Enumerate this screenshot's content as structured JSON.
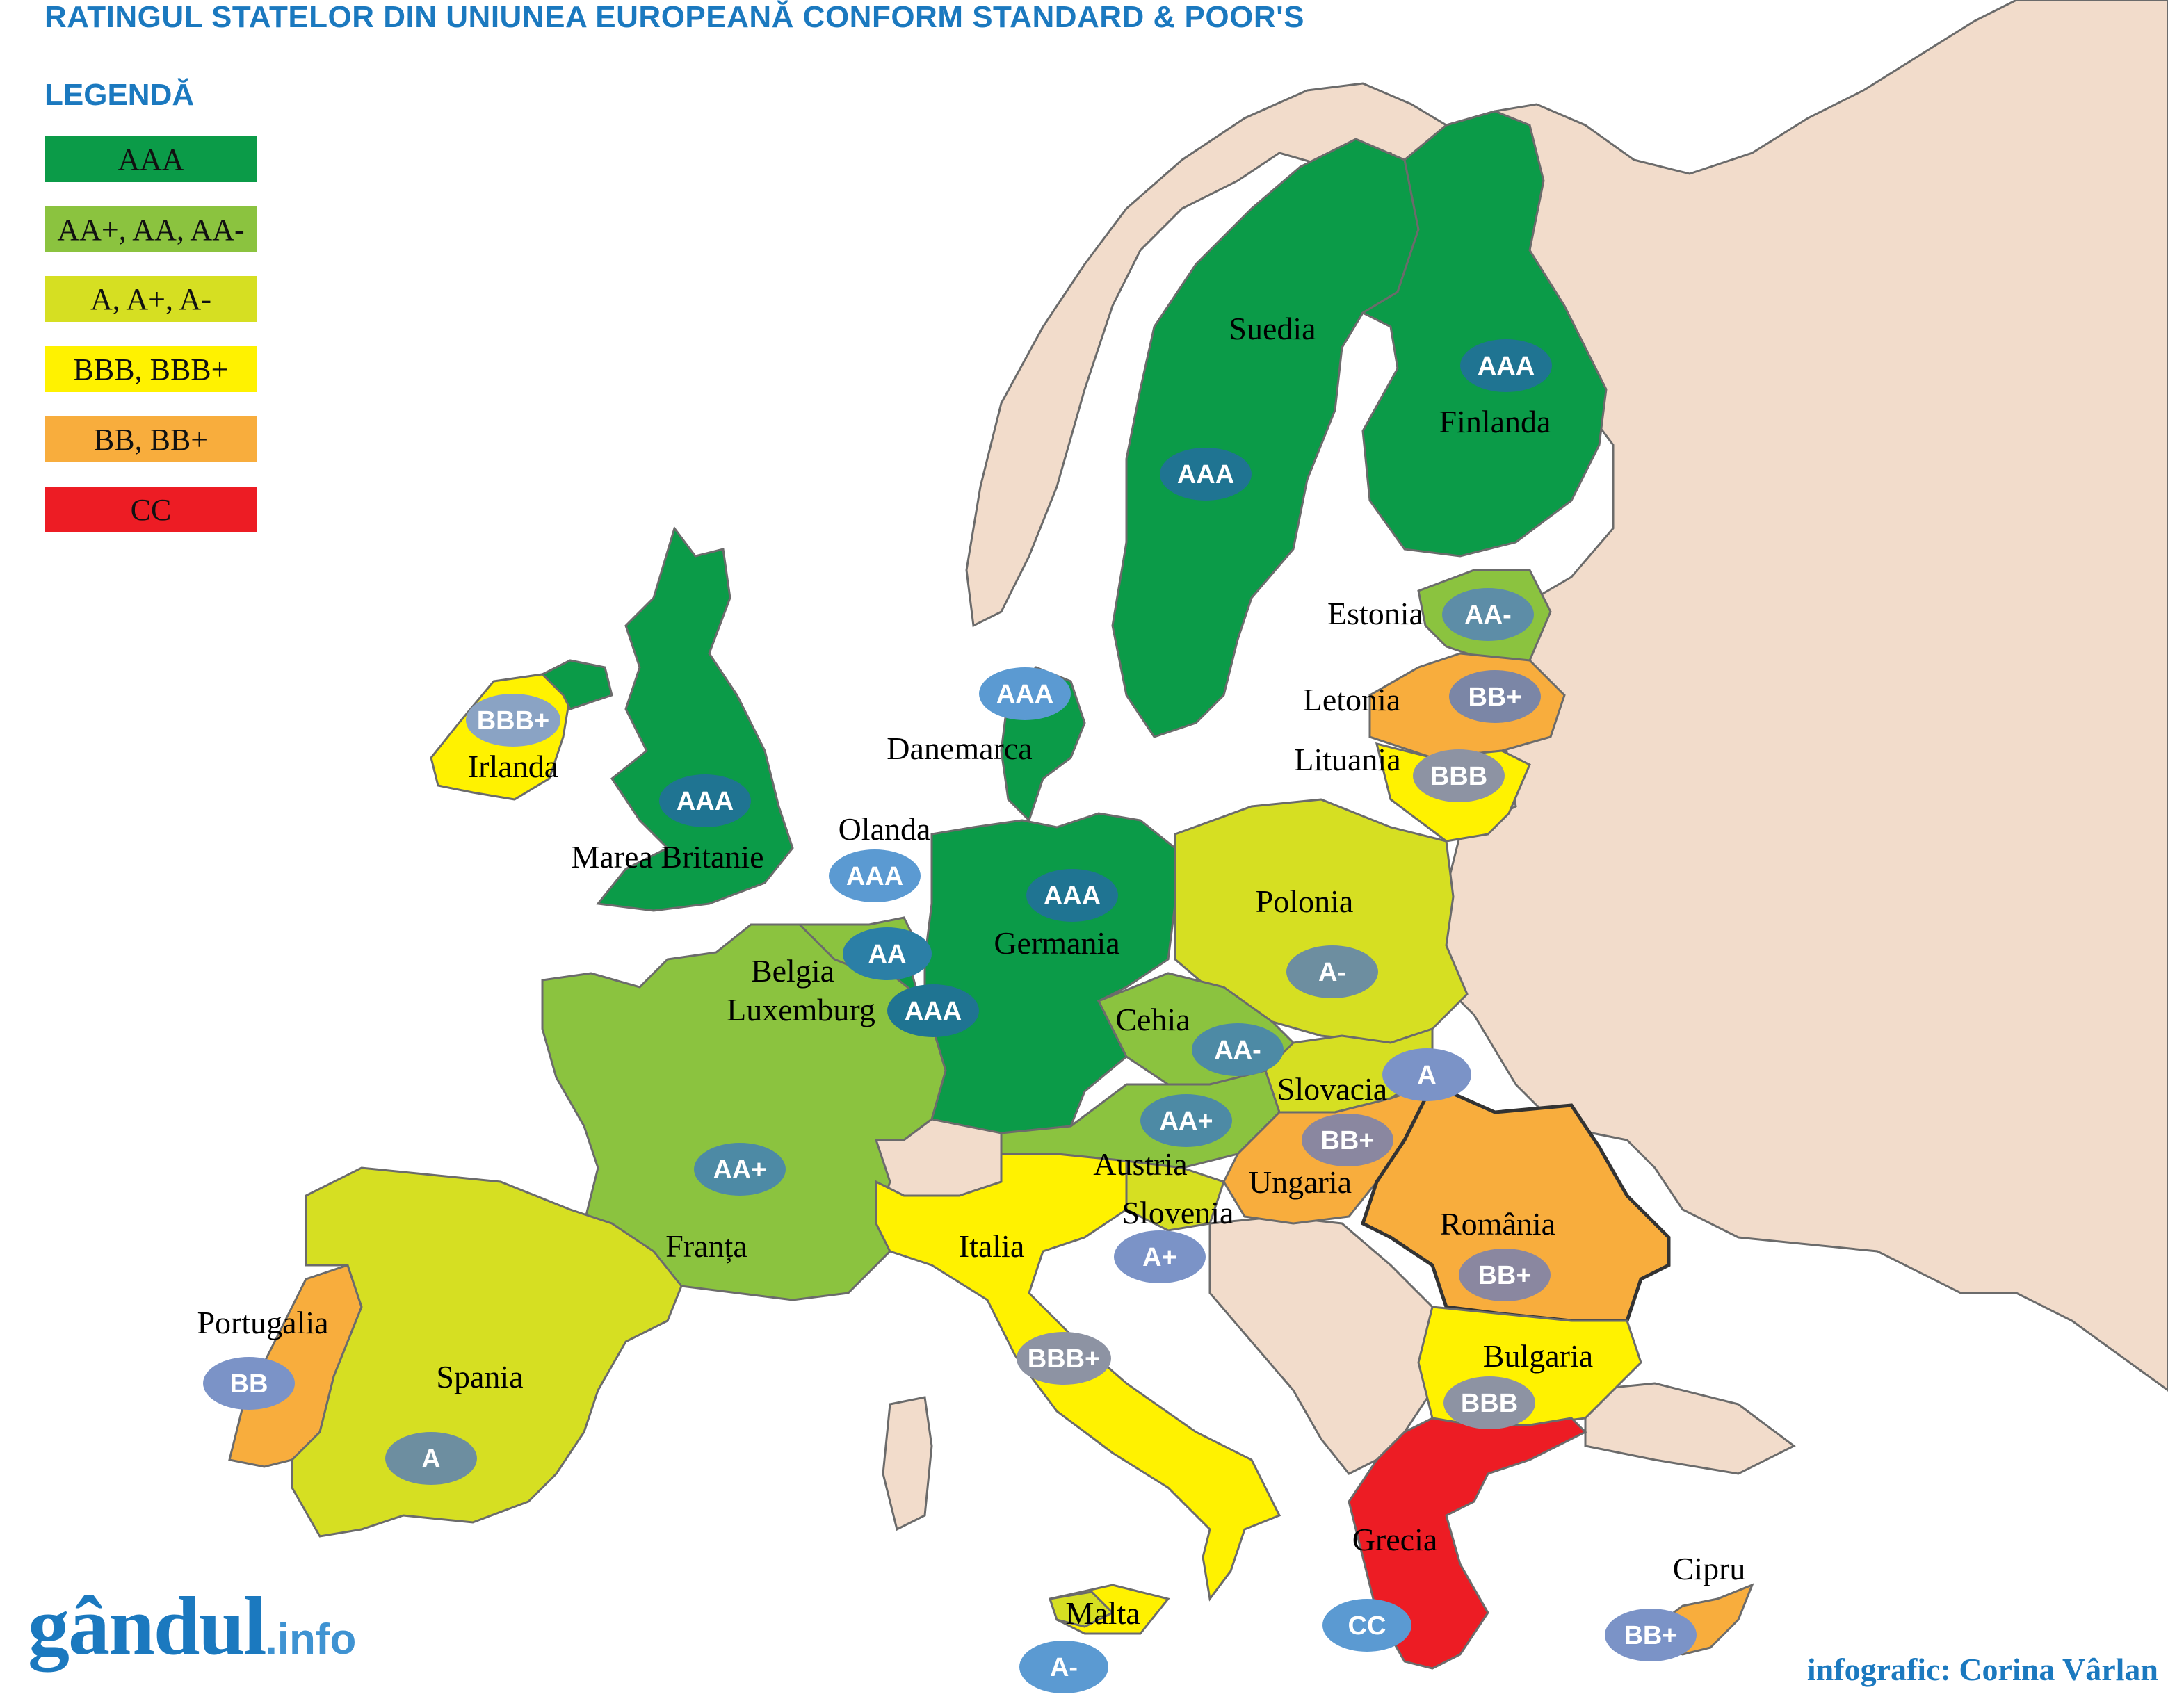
{
  "title": "RATINGUL STATELOR DIN UNIUNEA EUROPEANĂ CONFORM STANDARD & POOR'S",
  "legend": {
    "title": "LEGENDĂ",
    "items": [
      {
        "label": "AAA",
        "color": "#0b9b48"
      },
      {
        "label": "AA+, AA, AA-",
        "color": "#8bc33f"
      },
      {
        "label": "A, A+, A-",
        "color": "#d6df22"
      },
      {
        "label": "BBB, BBB+",
        "color": "#fff200"
      },
      {
        "label": "BB, BB+",
        "color": "#f8ad3d"
      },
      {
        "label": "CC",
        "color": "#ed1c24"
      }
    ]
  },
  "countries": {
    "suedia": {
      "name": "Suedia",
      "rating": "AAA"
    },
    "finlanda": {
      "name": "Finlanda",
      "rating": "AAA"
    },
    "estonia": {
      "name": "Estonia",
      "rating": "AA-"
    },
    "letonia": {
      "name": "Letonia",
      "rating": "BB+"
    },
    "lituania": {
      "name": "Lituania",
      "rating": "BBB"
    },
    "danemarca": {
      "name": "Danemarca",
      "rating": "AAA"
    },
    "irlanda": {
      "name": "Irlanda",
      "rating": "BBB+"
    },
    "marea_britanie": {
      "name": "Marea Britanie",
      "rating": "AAA"
    },
    "olanda": {
      "name": "Olanda",
      "rating": "AAA"
    },
    "belgia": {
      "name": "Belgia",
      "rating": "AA"
    },
    "luxemburg": {
      "name": "Luxemburg",
      "rating": "AAA"
    },
    "germania": {
      "name": "Germania",
      "rating": "AAA"
    },
    "polonia": {
      "name": "Polonia",
      "rating": "A-"
    },
    "cehia": {
      "name": "Cehia",
      "rating": "AA-"
    },
    "slovacia": {
      "name": "Slovacia",
      "rating": "A"
    },
    "austria": {
      "name": "Austria",
      "rating": "AA+"
    },
    "ungaria": {
      "name": "Ungaria",
      "rating": "BB+"
    },
    "romania": {
      "name": "România",
      "rating": "BB+"
    },
    "slovenia": {
      "name": "Slovenia",
      "rating": "A+"
    },
    "franta": {
      "name": "Franța",
      "rating": "AA+"
    },
    "italia": {
      "name": "Italia",
      "rating": "BBB+"
    },
    "bulgaria": {
      "name": "Bulgaria",
      "rating": "BBB"
    },
    "portugalia": {
      "name": "Portugalia",
      "rating": "BB"
    },
    "spania": {
      "name": "Spania",
      "rating": "A"
    },
    "grecia": {
      "name": "Grecia",
      "rating": "CC"
    },
    "malta": {
      "name": "Malta",
      "rating": "A-"
    },
    "cipru": {
      "name": "Cipru",
      "rating": "BB+"
    }
  },
  "colors": {
    "non_eu_land": "#f2dccb",
    "border": "#6b6b6b",
    "badge_dark": "#1f7492",
    "badge_light": "#5b9ad2"
  },
  "logo": {
    "main": "gândul",
    "suffix": ".info"
  },
  "credit": "infografic: Corina Vârlan"
}
